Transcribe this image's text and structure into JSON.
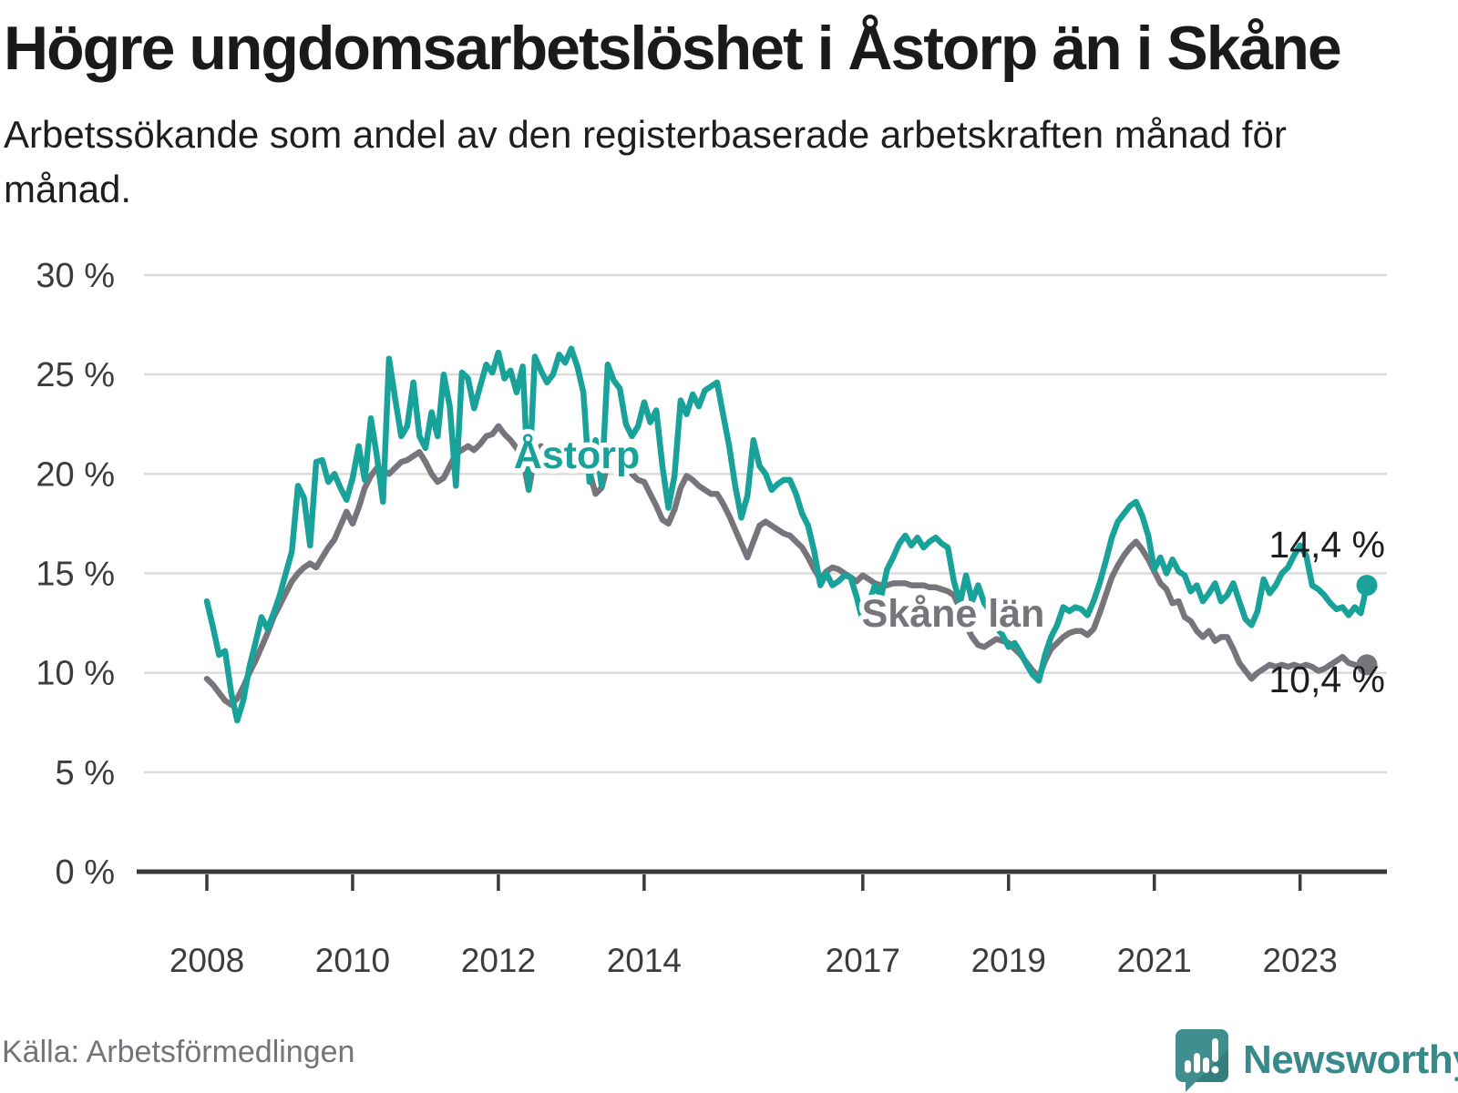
{
  "header": {
    "title": "Högre ungdomsarbetslöshet i Åstorp än i Skåne",
    "subtitle": "Arbetssökande som andel av den registerbaserade arbetskraften månad för månad."
  },
  "footer": {
    "source": "Källa: Arbetsförmedlingen",
    "logo_text": "Newsworthy"
  },
  "colors": {
    "astorp": "#18a29a",
    "skane": "#77757b",
    "grid": "#dcdcdc",
    "axis": "#3a3a3a",
    "tick_label": "#3c3c3c",
    "end_label": "#1d1d1d",
    "logo_teal": "#3e8f8d",
    "logo_teal_dark": "#337b7a"
  },
  "chart_data": {
    "type": "line",
    "unit": "%",
    "title": "Högre ungdomsarbetslöshet i Åstorp än i Skåne",
    "x_start": "2008-01",
    "x_end": "2023-12",
    "x_frequency": "monthly",
    "ylim": [
      0,
      30
    ],
    "grid": true,
    "y_ticks": [
      {
        "value": 0,
        "label": "0 %"
      },
      {
        "value": 5,
        "label": "5 %"
      },
      {
        "value": 10,
        "label": "10 %"
      },
      {
        "value": 15,
        "label": "15 %"
      },
      {
        "value": 20,
        "label": "20 %"
      },
      {
        "value": 25,
        "label": "25 %"
      },
      {
        "value": 30,
        "label": "30 %"
      }
    ],
    "x_ticks": [
      {
        "year": 2008,
        "label": "2008"
      },
      {
        "year": 2010,
        "label": "2010"
      },
      {
        "year": 2012,
        "label": "2012"
      },
      {
        "year": 2014,
        "label": "2014"
      },
      {
        "year": 2017,
        "label": "2017"
      },
      {
        "year": 2019,
        "label": "2019"
      },
      {
        "year": 2021,
        "label": "2021"
      },
      {
        "year": 2023,
        "label": "2023"
      }
    ],
    "series": [
      {
        "name": "Åstorp",
        "color": "#18a29a",
        "end_label": "14,4 %",
        "end_value": 14.4,
        "values": [
          13.6,
          12.3,
          10.9,
          11.1,
          9.0,
          7.6,
          8.6,
          10.3,
          11.5,
          12.8,
          12.2,
          13.0,
          13.9,
          15.0,
          16.1,
          19.4,
          18.8,
          16.4,
          20.6,
          20.7,
          19.6,
          20.0,
          19.3,
          18.7,
          19.8,
          21.4,
          19.7,
          22.8,
          20.9,
          18.6,
          25.8,
          23.8,
          21.9,
          22.4,
          24.6,
          21.9,
          21.3,
          23.1,
          21.9,
          25.0,
          23.4,
          19.4,
          25.1,
          24.8,
          23.3,
          24.4,
          25.5,
          25.1,
          26.1,
          24.8,
          25.2,
          24.1,
          25.4,
          19.2,
          25.9,
          25.2,
          24.6,
          25.0,
          26.0,
          25.6,
          26.3,
          25.4,
          24.1,
          19.6,
          21.7,
          19.4,
          25.5,
          24.7,
          24.3,
          22.5,
          21.9,
          22.4,
          23.6,
          22.6,
          23.2,
          20.4,
          18.3,
          19.9,
          23.7,
          23.0,
          24.0,
          23.4,
          24.2,
          24.4,
          24.6,
          23.0,
          21.4,
          19.4,
          17.8,
          18.9,
          21.7,
          20.4,
          20.0,
          19.2,
          19.5,
          19.7,
          19.7,
          19.0,
          18.0,
          17.4,
          16.1,
          14.4,
          15.0,
          14.4,
          14.6,
          14.9,
          14.8,
          13.8,
          12.6,
          13.5,
          14.4,
          13.8,
          15.2,
          15.8,
          16.5,
          16.9,
          16.4,
          16.8,
          16.3,
          16.6,
          16.8,
          16.5,
          16.3,
          14.6,
          13.5,
          14.9,
          13.6,
          14.4,
          13.5,
          13.1,
          12.3,
          11.9,
          11.3,
          11.5,
          11.0,
          10.4,
          9.9,
          9.6,
          10.9,
          11.8,
          12.4,
          13.3,
          13.1,
          13.3,
          13.2,
          12.9,
          13.6,
          14.5,
          15.6,
          16.8,
          17.6,
          18.0,
          18.4,
          18.6,
          17.9,
          16.9,
          15.2,
          15.8,
          15.0,
          15.7,
          15.1,
          14.9,
          14.1,
          14.4,
          13.6,
          14.0,
          14.5,
          13.6,
          13.9,
          14.5,
          13.6,
          12.7,
          12.4,
          13.1,
          14.7,
          14.0,
          14.4,
          15.0,
          15.3,
          15.9,
          16.4,
          15.9,
          14.4,
          14.2,
          13.9,
          13.5,
          13.2,
          13.3,
          12.9,
          13.3,
          13.0,
          14.4
        ]
      },
      {
        "name": "Skåne län",
        "color": "#77757b",
        "end_label": "10,4 %",
        "end_value": 10.4,
        "values": [
          9.7,
          9.4,
          9.0,
          8.6,
          8.4,
          8.7,
          9.3,
          10.0,
          10.6,
          11.3,
          12.0,
          12.8,
          13.4,
          14.0,
          14.6,
          15.0,
          15.3,
          15.5,
          15.3,
          15.8,
          16.3,
          16.7,
          17.4,
          18.1,
          17.5,
          18.3,
          19.3,
          19.9,
          20.3,
          20.2,
          20.0,
          20.3,
          20.6,
          20.7,
          20.9,
          21.1,
          20.6,
          20.0,
          19.6,
          19.8,
          20.4,
          21.0,
          21.2,
          21.4,
          21.2,
          21.5,
          21.9,
          22.0,
          22.4,
          22.0,
          21.7,
          21.3,
          20.8,
          19.2,
          20.9,
          21.4,
          21.2,
          21.0,
          20.8,
          20.6,
          21.0,
          21.3,
          21.1,
          20.1,
          19.0,
          19.3,
          20.5,
          21.0,
          20.8,
          20.4,
          20.0,
          19.7,
          19.6,
          19.0,
          18.4,
          17.7,
          17.5,
          18.2,
          19.3,
          19.9,
          19.7,
          19.4,
          19.2,
          19.0,
          19.0,
          18.5,
          17.9,
          17.2,
          16.5,
          15.8,
          16.6,
          17.4,
          17.6,
          17.4,
          17.2,
          17.0,
          16.9,
          16.6,
          16.3,
          15.8,
          15.2,
          14.7,
          15.1,
          15.3,
          15.2,
          15.0,
          14.8,
          14.6,
          14.9,
          14.7,
          14.5,
          14.4,
          14.4,
          14.5,
          14.5,
          14.5,
          14.4,
          14.4,
          14.4,
          14.3,
          14.3,
          14.2,
          14.1,
          13.9,
          13.2,
          12.4,
          11.8,
          11.4,
          11.3,
          11.5,
          11.7,
          11.6,
          11.5,
          11.2,
          10.9,
          10.5,
          10.1,
          9.8,
          10.6,
          11.2,
          11.5,
          11.8,
          12.0,
          12.1,
          12.1,
          11.9,
          12.2,
          13.0,
          13.9,
          14.8,
          15.4,
          15.9,
          16.3,
          16.6,
          16.2,
          15.7,
          15.1,
          14.5,
          14.2,
          13.5,
          13.6,
          12.8,
          12.6,
          12.1,
          11.8,
          12.1,
          11.6,
          11.8,
          11.8,
          11.2,
          10.5,
          10.1,
          9.7,
          10.0,
          10.2,
          10.4,
          10.3,
          10.4,
          10.3,
          10.4,
          10.3,
          10.4,
          10.3,
          10.1,
          10.2,
          10.4,
          10.6,
          10.8,
          10.5,
          10.4,
          10.3,
          10.4
        ]
      }
    ],
    "legend_position": "inline-labels"
  }
}
